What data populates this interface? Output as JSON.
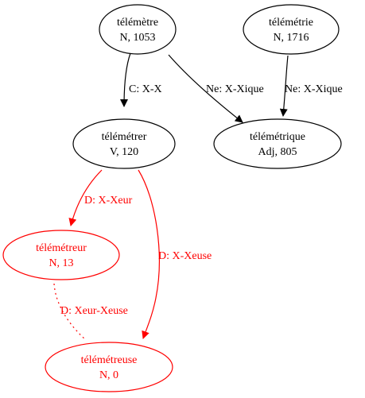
{
  "graph": {
    "nodes": [
      {
        "id": "telemetre",
        "word": "télémètre",
        "info": "N, 1053",
        "color": "#000000"
      },
      {
        "id": "telemetrie",
        "word": "télémétrie",
        "info": "N, 1716",
        "color": "#000000"
      },
      {
        "id": "telemetrer",
        "word": "télémétrer",
        "info": "V, 120",
        "color": "#000000"
      },
      {
        "id": "telemetrique",
        "word": "télémétrique",
        "info": "Adj, 805",
        "color": "#000000"
      },
      {
        "id": "telemetreur",
        "word": "télémétreur",
        "info": "N, 13",
        "color": "#ff0000"
      },
      {
        "id": "telemetreuse",
        "word": "télémétreuse",
        "info": "N, 0",
        "color": "#ff0000"
      }
    ],
    "edges": [
      {
        "from": "telemetre",
        "to": "telemetrer",
        "label": "C: X-X",
        "color": "#000000",
        "style": "solid"
      },
      {
        "from": "telemetre",
        "to": "telemetrique",
        "label": "Ne: X-Xique",
        "color": "#000000",
        "style": "solid"
      },
      {
        "from": "telemetrie",
        "to": "telemetrique",
        "label": "Ne: X-Xique",
        "color": "#000000",
        "style": "solid"
      },
      {
        "from": "telemetrer",
        "to": "telemetreur",
        "label": "D: X-Xeur",
        "color": "#ff0000",
        "style": "solid"
      },
      {
        "from": "telemetrer",
        "to": "telemetreuse",
        "label": "D: X-Xeuse",
        "color": "#ff0000",
        "style": "solid"
      },
      {
        "from": "telemetreur",
        "to": "telemetreuse",
        "label": "D: Xeur-Xeuse",
        "color": "#ff0000",
        "style": "dotted"
      }
    ]
  }
}
